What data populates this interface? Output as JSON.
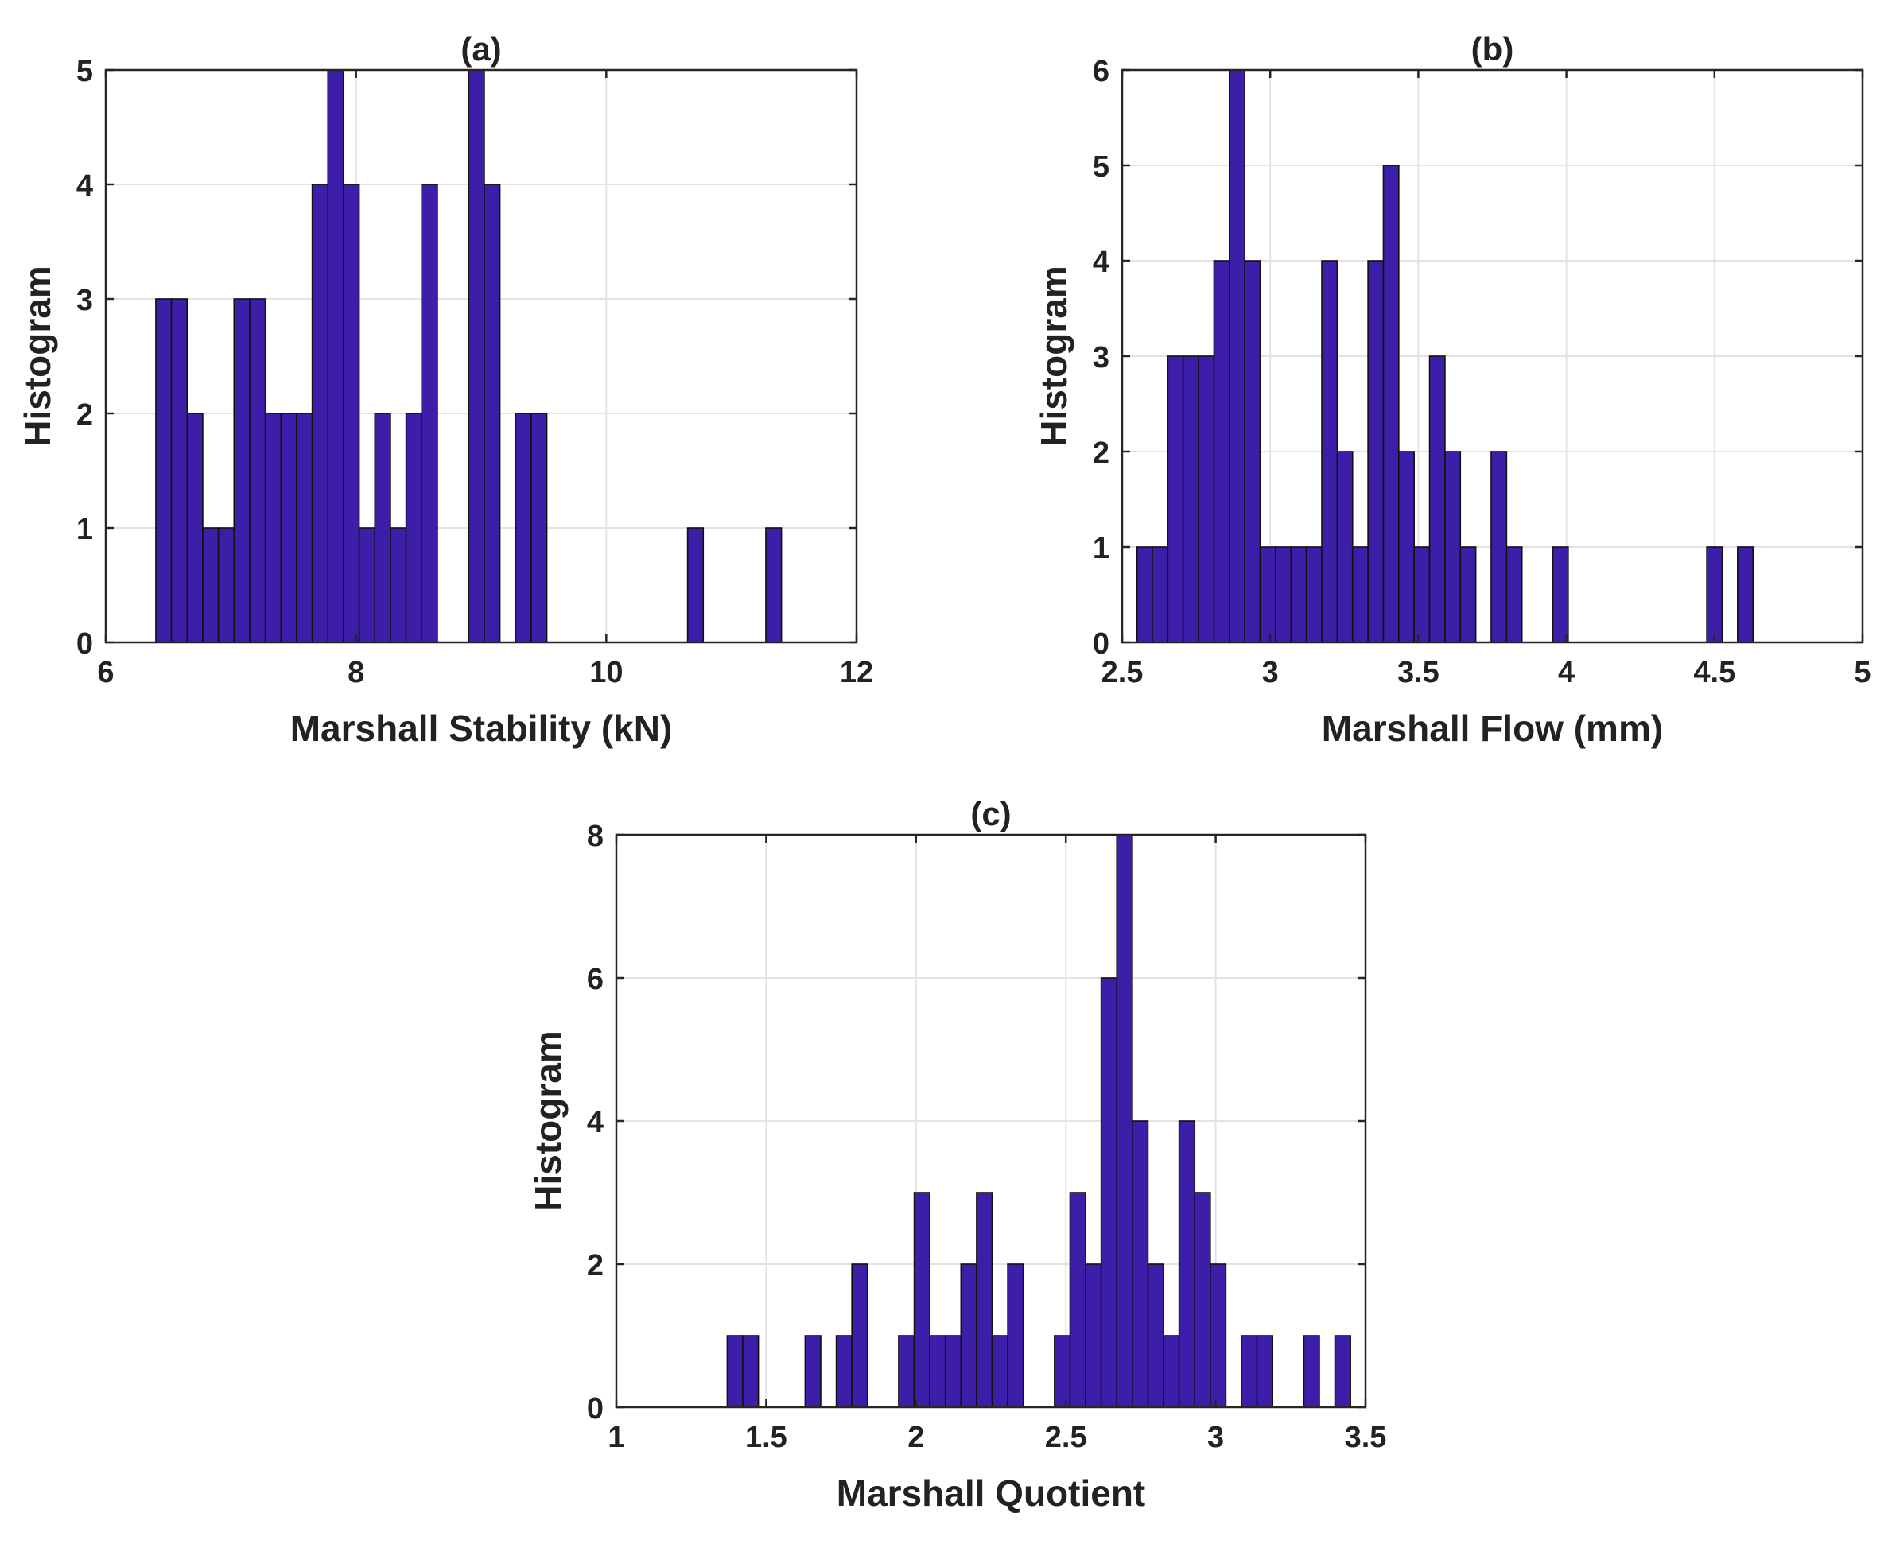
{
  "figure": {
    "bar_color": "#3c1ea8",
    "bar_edge_color": "#111111",
    "grid_color": "#e3e3e3"
  },
  "chart_data": [
    {
      "type": "bar",
      "panel": "a",
      "title": "(a)",
      "xlabel": "Marshall Stability (kN)",
      "ylabel": "Histogram",
      "xlim": [
        6,
        12
      ],
      "ylim": [
        0,
        5
      ],
      "xticks": [
        6,
        8,
        10,
        12
      ],
      "xtick_labels": [
        "6",
        "8",
        "10",
        "12"
      ],
      "yticks": [
        0,
        1,
        2,
        3,
        4,
        5
      ],
      "ytick_labels": [
        "0",
        "1",
        "2",
        "3",
        "4",
        "5"
      ],
      "grid": true,
      "bin_width": 0.125,
      "bins": [
        {
          "x0": 6.4,
          "count": 3
        },
        {
          "x0": 6.525,
          "count": 3
        },
        {
          "x0": 6.65,
          "count": 2
        },
        {
          "x0": 6.775,
          "count": 1
        },
        {
          "x0": 6.9,
          "count": 1
        },
        {
          "x0": 7.025,
          "count": 3
        },
        {
          "x0": 7.15,
          "count": 3
        },
        {
          "x0": 7.275,
          "count": 2
        },
        {
          "x0": 7.4,
          "count": 2
        },
        {
          "x0": 7.525,
          "count": 2
        },
        {
          "x0": 7.65,
          "count": 4
        },
        {
          "x0": 7.775,
          "count": 5
        },
        {
          "x0": 7.9,
          "count": 4
        },
        {
          "x0": 8.025,
          "count": 1
        },
        {
          "x0": 8.15,
          "count": 2
        },
        {
          "x0": 8.275,
          "count": 1
        },
        {
          "x0": 8.4,
          "count": 2
        },
        {
          "x0": 8.525,
          "count": 4
        },
        {
          "x0": 8.9,
          "count": 5
        },
        {
          "x0": 9.025,
          "count": 4
        },
        {
          "x0": 9.275,
          "count": 2
        },
        {
          "x0": 9.4,
          "count": 2
        },
        {
          "x0": 10.65,
          "count": 1
        },
        {
          "x0": 11.275,
          "count": 1
        }
      ]
    },
    {
      "type": "bar",
      "panel": "b",
      "title": "(b)",
      "xlabel": "Marshall Flow (mm)",
      "ylabel": "Histogram",
      "xlim": [
        2.5,
        5
      ],
      "ylim": [
        0,
        6
      ],
      "xticks": [
        2.5,
        3,
        3.5,
        4,
        4.5,
        5
      ],
      "xtick_labels": [
        "2.5",
        "3",
        "3.5",
        "4",
        "4.5",
        "5"
      ],
      "yticks": [
        0,
        1,
        2,
        3,
        4,
        5,
        6
      ],
      "ytick_labels": [
        "0",
        "1",
        "2",
        "3",
        "4",
        "5",
        "6"
      ],
      "grid": true,
      "bin_width": 0.052,
      "bins": [
        {
          "x0": 2.55,
          "count": 1
        },
        {
          "x0": 2.602,
          "count": 1
        },
        {
          "x0": 2.654,
          "count": 3
        },
        {
          "x0": 2.706,
          "count": 3
        },
        {
          "x0": 2.758,
          "count": 3
        },
        {
          "x0": 2.81,
          "count": 4
        },
        {
          "x0": 2.862,
          "count": 6
        },
        {
          "x0": 2.914,
          "count": 4
        },
        {
          "x0": 2.966,
          "count": 1
        },
        {
          "x0": 3.018,
          "count": 1
        },
        {
          "x0": 3.07,
          "count": 1
        },
        {
          "x0": 3.122,
          "count": 1
        },
        {
          "x0": 3.174,
          "count": 4
        },
        {
          "x0": 3.226,
          "count": 2
        },
        {
          "x0": 3.278,
          "count": 1
        },
        {
          "x0": 3.33,
          "count": 4
        },
        {
          "x0": 3.382,
          "count": 5
        },
        {
          "x0": 3.434,
          "count": 2
        },
        {
          "x0": 3.486,
          "count": 1
        },
        {
          "x0": 3.538,
          "count": 3
        },
        {
          "x0": 3.59,
          "count": 2
        },
        {
          "x0": 3.642,
          "count": 1
        },
        {
          "x0": 3.746,
          "count": 2
        },
        {
          "x0": 3.798,
          "count": 1
        },
        {
          "x0": 3.954,
          "count": 1
        },
        {
          "x0": 4.474,
          "count": 1
        },
        {
          "x0": 4.578,
          "count": 1
        }
      ]
    },
    {
      "type": "bar",
      "panel": "c",
      "title": "(c)",
      "xlabel": "Marshall Quotient",
      "ylabel": "Histogram",
      "xlim": [
        1,
        3.5
      ],
      "ylim": [
        0,
        8
      ],
      "xticks": [
        1,
        1.5,
        2,
        2.5,
        3,
        3.5
      ],
      "xtick_labels": [
        "1",
        "1.5",
        "2",
        "2.5",
        "3",
        "3.5"
      ],
      "yticks": [
        0,
        2,
        4,
        6,
        8
      ],
      "ytick_labels": [
        "0",
        "2",
        "4",
        "6",
        "8"
      ],
      "grid": true,
      "bin_width": 0.052,
      "bins": [
        {
          "x0": 1.37,
          "count": 1
        },
        {
          "x0": 1.422,
          "count": 1
        },
        {
          "x0": 1.63,
          "count": 1
        },
        {
          "x0": 1.734,
          "count": 1
        },
        {
          "x0": 1.786,
          "count": 2
        },
        {
          "x0": 1.942,
          "count": 1
        },
        {
          "x0": 1.994,
          "count": 3
        },
        {
          "x0": 2.046,
          "count": 1
        },
        {
          "x0": 2.098,
          "count": 1
        },
        {
          "x0": 2.15,
          "count": 2
        },
        {
          "x0": 2.202,
          "count": 3
        },
        {
          "x0": 2.254,
          "count": 1
        },
        {
          "x0": 2.306,
          "count": 2
        },
        {
          "x0": 2.462,
          "count": 1
        },
        {
          "x0": 2.514,
          "count": 3
        },
        {
          "x0": 2.566,
          "count": 2
        },
        {
          "x0": 2.618,
          "count": 6
        },
        {
          "x0": 2.67,
          "count": 8
        },
        {
          "x0": 2.722,
          "count": 4
        },
        {
          "x0": 2.774,
          "count": 2
        },
        {
          "x0": 2.826,
          "count": 1
        },
        {
          "x0": 2.878,
          "count": 4
        },
        {
          "x0": 2.93,
          "count": 3
        },
        {
          "x0": 2.982,
          "count": 2
        },
        {
          "x0": 3.086,
          "count": 1
        },
        {
          "x0": 3.138,
          "count": 1
        },
        {
          "x0": 3.294,
          "count": 1
        },
        {
          "x0": 3.398,
          "count": 1
        }
      ]
    }
  ]
}
